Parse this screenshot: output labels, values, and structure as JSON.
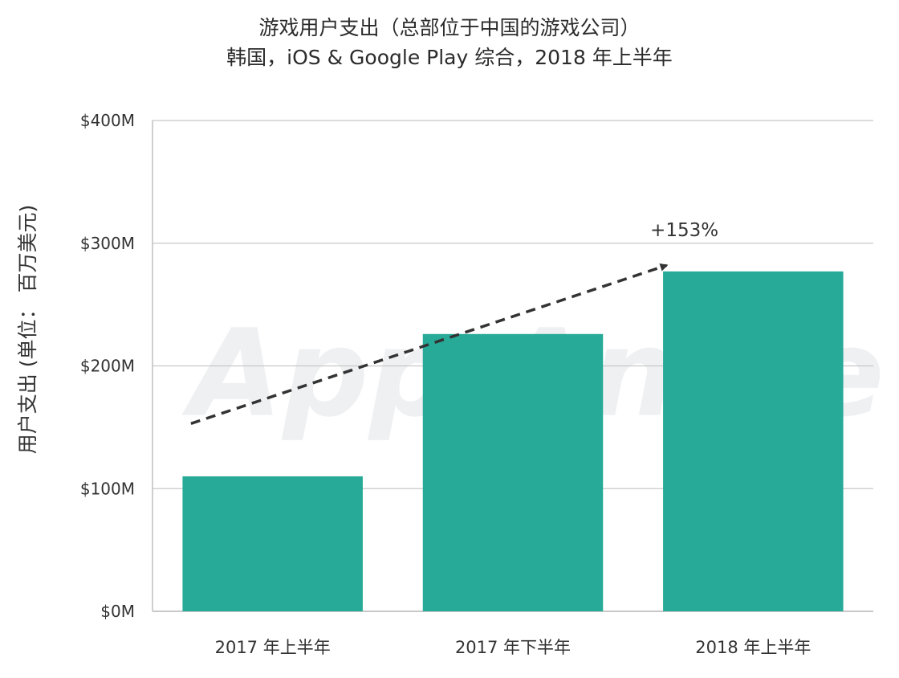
{
  "chart_data": {
    "type": "bar",
    "title": "游戏用户支出（总部位于中国的游戏公司）",
    "subtitle": "韩国，iOS & Google Play 综合，2018 年上半年",
    "ylabel": "用户支出 (单位： 百万美元)",
    "xlabel": "",
    "categories": [
      "2017 年上半年",
      "2017 年下半年",
      "2018 年上半年"
    ],
    "values": [
      110,
      226,
      277
    ],
    "ylim": [
      0,
      400
    ],
    "yticks": [
      0,
      100,
      200,
      300,
      400
    ],
    "ytick_labels": [
      "$0M",
      "$100M",
      "$200M",
      "$300M",
      "$400M"
    ],
    "grid": true,
    "bar_color": "#27aa98",
    "annotation": {
      "text": "+153%",
      "style": "dashed-arrow",
      "from": {
        "category": "2017 年上半年",
        "value": 153
      },
      "to": {
        "category": "2018 年上半年",
        "value": 282
      }
    },
    "watermark": "App Annie"
  }
}
